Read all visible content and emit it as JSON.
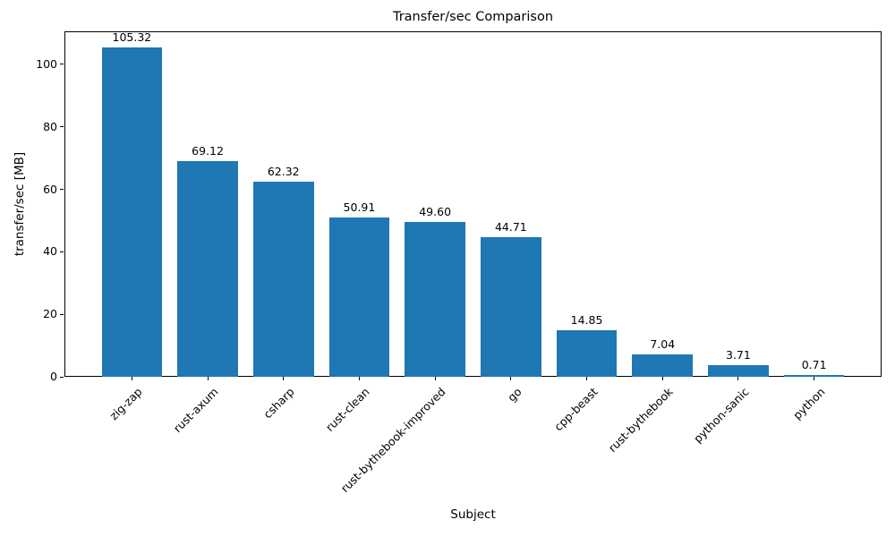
{
  "chart_data": {
    "type": "bar",
    "title": "Transfer/sec Comparison",
    "xlabel": "Subject",
    "ylabel": "transfer/sec [MB]",
    "categories": [
      "zig-zap",
      "rust-axum",
      "csharp",
      "rust-clean",
      "rust-bythebook-improved",
      "go",
      "cpp-beast",
      "rust-bythebook",
      "python-sanic",
      "python"
    ],
    "values": [
      105.32,
      69.12,
      62.32,
      50.91,
      49.6,
      44.71,
      14.85,
      7.04,
      3.71,
      0.71
    ],
    "bar_value_labels": [
      "105.32",
      "69.12",
      "62.32",
      "50.91",
      "49.60",
      "44.71",
      "14.85",
      "7.04",
      "3.71",
      "0.71"
    ],
    "yticks": [
      "0",
      "20",
      "40",
      "60",
      "80",
      "100"
    ],
    "ylim": [
      0,
      110.6
    ],
    "xtick_rotation_deg": 45,
    "grid": false,
    "colors": {
      "bar": "#1f77b4",
      "spine": "#000000",
      "text": "#000000",
      "background": "#ffffff"
    }
  }
}
